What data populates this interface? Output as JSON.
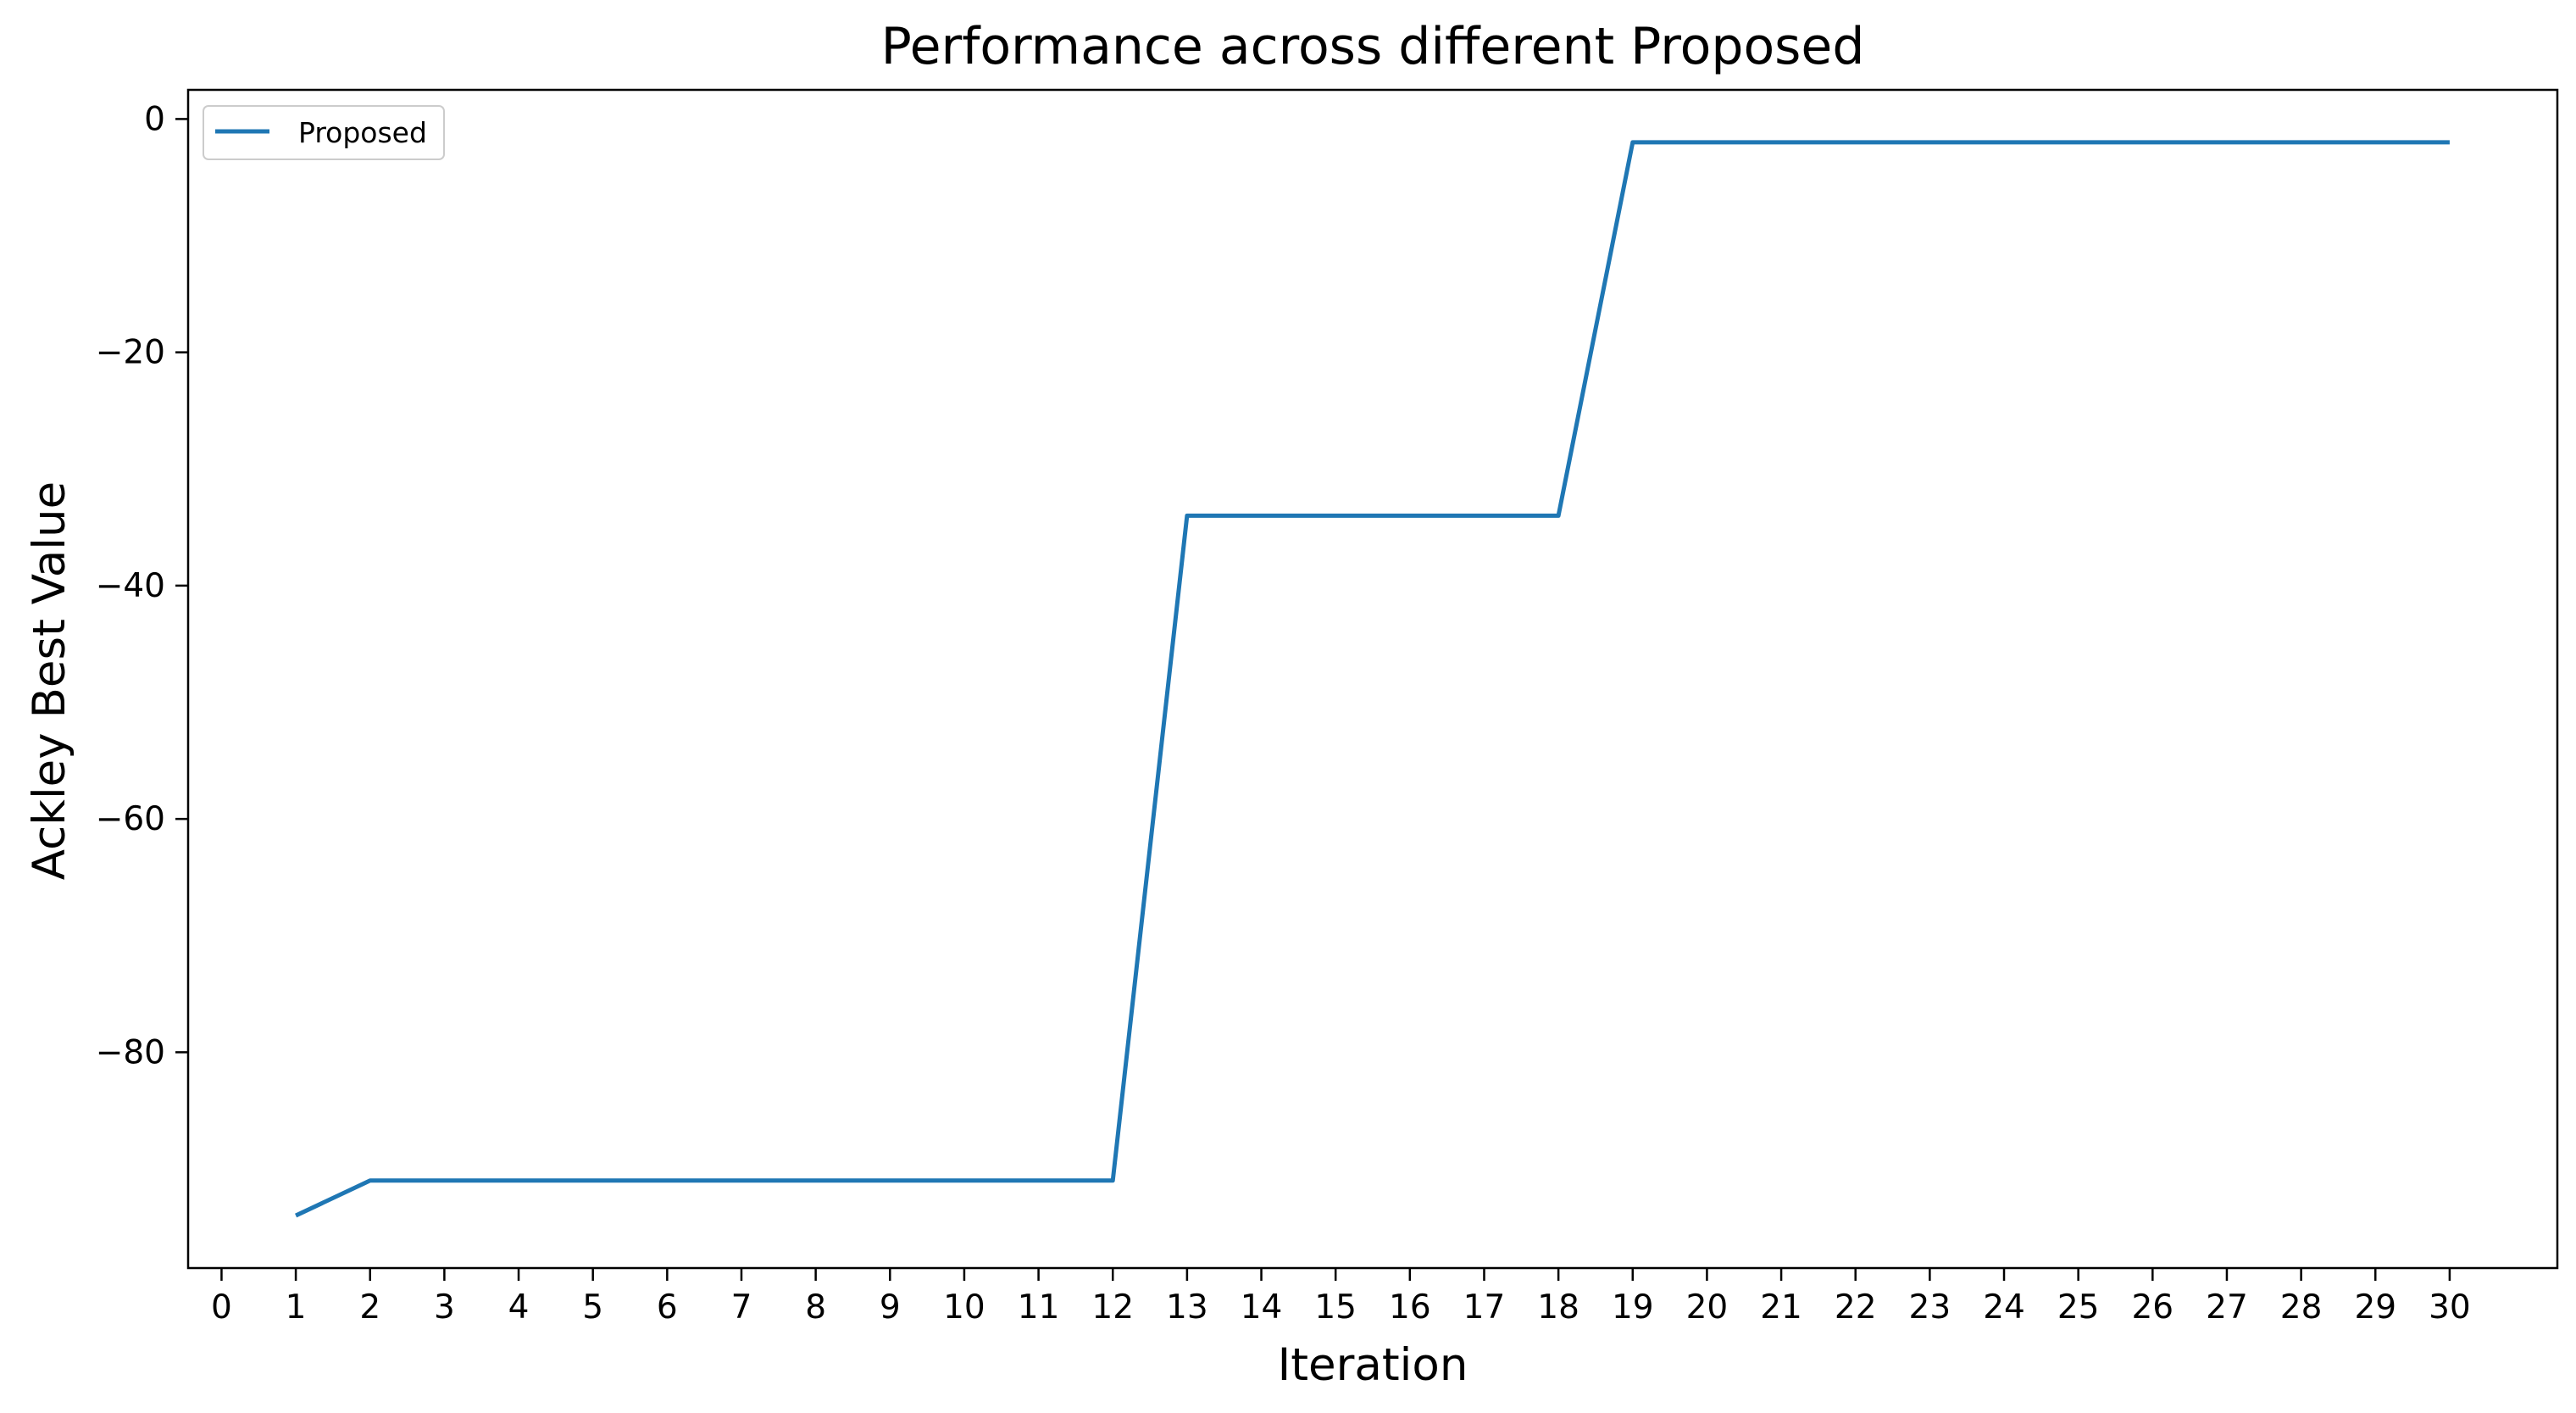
{
  "chart_data": {
    "type": "line",
    "title": "Performance across different Proposed",
    "xlabel": "Iteration",
    "ylabel": "Ackley Best Value",
    "xlim": [
      -0.45,
      31.45
    ],
    "ylim": [
      -98.5,
      2.5
    ],
    "x_ticks": [
      0,
      1,
      2,
      3,
      4,
      5,
      6,
      7,
      8,
      9,
      10,
      11,
      12,
      13,
      14,
      15,
      16,
      17,
      18,
      19,
      20,
      21,
      22,
      23,
      24,
      25,
      26,
      27,
      28,
      29,
      30
    ],
    "y_ticks": [
      0,
      -20,
      -40,
      -60,
      -80
    ],
    "y_tick_labels": [
      "0",
      "−20",
      "−40",
      "−60",
      "−80"
    ],
    "grid": false,
    "legend_position": "top-left",
    "x": [
      1,
      2,
      3,
      4,
      5,
      6,
      7,
      8,
      9,
      10,
      11,
      12,
      13,
      14,
      15,
      16,
      17,
      18,
      19,
      20,
      21,
      22,
      23,
      24,
      25,
      26,
      27,
      28,
      29,
      30
    ],
    "series": [
      {
        "name": "Proposed",
        "color": "#1f77b4",
        "values": [
          -94,
          -91,
          -91,
          -91,
          -91,
          -91,
          -91,
          -91,
          -91,
          -91,
          -91,
          -91,
          -34,
          -34,
          -34,
          -34,
          -34,
          -34,
          -2,
          -2,
          -2,
          -2,
          -2,
          -2,
          -2,
          -2,
          -2,
          -2,
          -2,
          -2
        ]
      }
    ]
  }
}
